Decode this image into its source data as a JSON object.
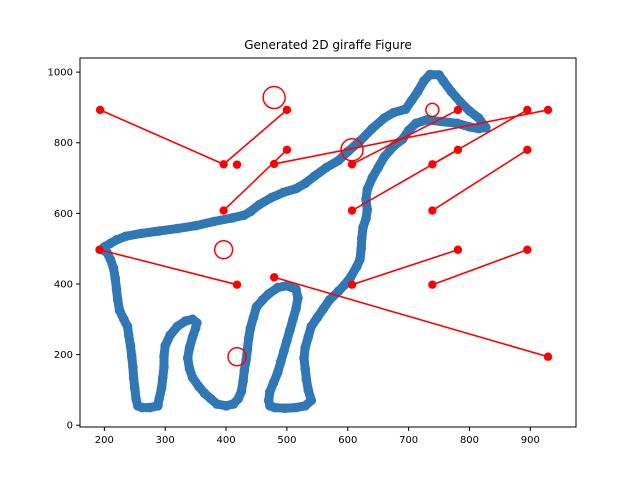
{
  "chart_data": {
    "type": "scatter",
    "title": "Generated 2D giraffe Figure",
    "xlabel": "",
    "ylabel": "",
    "xlim": [
      160,
      975
    ],
    "ylim": [
      -5,
      1040
    ],
    "xticks": [
      200,
      300,
      400,
      500,
      600,
      700,
      800,
      900
    ],
    "yticks": [
      0,
      200,
      400,
      600,
      800,
      1000
    ],
    "grid": false,
    "legend": "none",
    "colors": {
      "outline": "#2f78b5",
      "marks": "#ff0000",
      "axes": "#000000"
    },
    "outline_series": {
      "closed": true,
      "points": [
        [
          196,
          497
        ],
        [
          200,
          505
        ],
        [
          210,
          515
        ],
        [
          220,
          525
        ],
        [
          235,
          535
        ],
        [
          260,
          543
        ],
        [
          290,
          550
        ],
        [
          320,
          557
        ],
        [
          350,
          565
        ],
        [
          380,
          577
        ],
        [
          410,
          587
        ],
        [
          430,
          595
        ],
        [
          440,
          605
        ],
        [
          455,
          625
        ],
        [
          475,
          645
        ],
        [
          495,
          660
        ],
        [
          515,
          670
        ],
        [
          530,
          685
        ],
        [
          545,
          705
        ],
        [
          565,
          730
        ],
        [
          585,
          750
        ],
        [
          600,
          775
        ],
        [
          620,
          805
        ],
        [
          640,
          840
        ],
        [
          660,
          870
        ],
        [
          675,
          885
        ],
        [
          695,
          895
        ],
        [
          705,
          920
        ],
        [
          715,
          945
        ],
        [
          725,
          975
        ],
        [
          735,
          993
        ],
        [
          750,
          992
        ],
        [
          757,
          975
        ],
        [
          770,
          945
        ],
        [
          785,
          915
        ],
        [
          800,
          890
        ],
        [
          815,
          870
        ],
        [
          827,
          843
        ],
        [
          815,
          840
        ],
        [
          800,
          845
        ],
        [
          780,
          855
        ],
        [
          755,
          860
        ],
        [
          730,
          865
        ],
        [
          712,
          855
        ],
        [
          700,
          835
        ],
        [
          690,
          810
        ],
        [
          675,
          790
        ],
        [
          660,
          760
        ],
        [
          650,
          730
        ],
        [
          640,
          700
        ],
        [
          632,
          668
        ],
        [
          630,
          640
        ],
        [
          632,
          610
        ],
        [
          630,
          585
        ],
        [
          625,
          560
        ],
        [
          623,
          530
        ],
        [
          622,
          500
        ],
        [
          620,
          470
        ],
        [
          615,
          450
        ],
        [
          605,
          420
        ],
        [
          595,
          398
        ],
        [
          585,
          380
        ],
        [
          570,
          355
        ],
        [
          560,
          330
        ],
        [
          550,
          305
        ],
        [
          540,
          280
        ],
        [
          535,
          250
        ],
        [
          530,
          220
        ],
        [
          528,
          190
        ],
        [
          530,
          160
        ],
        [
          532,
          130
        ],
        [
          535,
          100
        ],
        [
          540,
          70
        ],
        [
          530,
          55
        ],
        [
          515,
          50
        ],
        [
          497,
          48
        ],
        [
          480,
          50
        ],
        [
          472,
          55
        ],
        [
          470,
          70
        ],
        [
          472,
          95
        ],
        [
          478,
          120
        ],
        [
          485,
          150
        ],
        [
          490,
          180
        ],
        [
          495,
          210
        ],
        [
          500,
          240
        ],
        [
          505,
          270
        ],
        [
          510,
          300
        ],
        [
          515,
          330
        ],
        [
          518,
          360
        ],
        [
          515,
          385
        ],
        [
          500,
          395
        ],
        [
          485,
          390
        ],
        [
          470,
          372
        ],
        [
          460,
          355
        ],
        [
          450,
          335
        ],
        [
          445,
          305
        ],
        [
          440,
          275
        ],
        [
          437,
          245
        ],
        [
          435,
          215
        ],
        [
          433,
          185
        ],
        [
          430,
          155
        ],
        [
          428,
          125
        ],
        [
          425,
          95
        ],
        [
          420,
          75
        ],
        [
          412,
          60
        ],
        [
          400,
          55
        ],
        [
          385,
          60
        ],
        [
          375,
          75
        ],
        [
          365,
          90
        ],
        [
          355,
          110
        ],
        [
          345,
          135
        ],
        [
          340,
          160
        ],
        [
          337,
          190
        ],
        [
          340,
          220
        ],
        [
          345,
          250
        ],
        [
          350,
          275
        ],
        [
          352,
          290
        ],
        [
          345,
          300
        ],
        [
          333,
          295
        ],
        [
          320,
          280
        ],
        [
          308,
          255
        ],
        [
          300,
          225
        ],
        [
          298,
          195
        ],
        [
          298,
          165
        ],
        [
          296,
          135
        ],
        [
          294,
          105
        ],
        [
          290,
          75
        ],
        [
          288,
          55
        ],
        [
          275,
          50
        ],
        [
          262,
          50
        ],
        [
          255,
          55
        ],
        [
          252,
          75
        ],
        [
          250,
          105
        ],
        [
          248,
          135
        ],
        [
          247,
          165
        ],
        [
          245,
          195
        ],
        [
          243,
          225
        ],
        [
          240,
          255
        ],
        [
          238,
          280
        ],
        [
          232,
          300
        ],
        [
          225,
          325
        ],
        [
          222,
          355
        ],
        [
          220,
          385
        ],
        [
          218,
          415
        ],
        [
          215,
          445
        ],
        [
          210,
          470
        ],
        [
          204,
          490
        ]
      ]
    },
    "marker_series": {
      "points": [
        [
          193,
          893
        ],
        [
          396,
          739
        ],
        [
          418,
          738
        ],
        [
          500,
          893
        ],
        [
          500,
          780
        ],
        [
          479,
          740
        ],
        [
          396,
          608
        ],
        [
          192,
          497
        ],
        [
          418,
          398
        ],
        [
          479,
          419
        ],
        [
          607,
          739
        ],
        [
          607,
          608
        ],
        [
          607,
          398
        ],
        [
          739,
          739
        ],
        [
          739,
          608
        ],
        [
          739,
          398
        ],
        [
          781,
          893
        ],
        [
          781,
          780
        ],
        [
          781,
          497
        ],
        [
          895,
          893
        ],
        [
          895,
          780
        ],
        [
          895,
          497
        ],
        [
          929,
          893
        ],
        [
          929,
          194
        ]
      ]
    },
    "line_segments": [
      [
        [
          193,
          893
        ],
        [
          396,
          739
        ]
      ],
      [
        [
          396,
          739
        ],
        [
          500,
          893
        ]
      ],
      [
        [
          396,
          608
        ],
        [
          500,
          780
        ]
      ],
      [
        [
          479,
          740
        ],
        [
          929,
          893
        ]
      ],
      [
        [
          607,
          739
        ],
        [
          781,
          893
        ]
      ],
      [
        [
          607,
          608
        ],
        [
          781,
          780
        ]
      ],
      [
        [
          739,
          739
        ],
        [
          895,
          893
        ]
      ],
      [
        [
          739,
          608
        ],
        [
          895,
          780
        ]
      ],
      [
        [
          607,
          398
        ],
        [
          781,
          497
        ]
      ],
      [
        [
          739,
          398
        ],
        [
          895,
          497
        ]
      ],
      [
        [
          192,
          497
        ],
        [
          418,
          398
        ]
      ],
      [
        [
          479,
          419
        ],
        [
          929,
          194
        ]
      ]
    ],
    "open_circles": [
      {
        "center": [
          479,
          928
        ],
        "size": "large"
      },
      {
        "center": [
          607,
          780
        ],
        "size": "large"
      },
      {
        "center": [
          396,
          497
        ],
        "size": "medium"
      },
      {
        "center": [
          418,
          194
        ],
        "size": "medium"
      },
      {
        "center": [
          739,
          893
        ],
        "size": "small"
      }
    ]
  }
}
